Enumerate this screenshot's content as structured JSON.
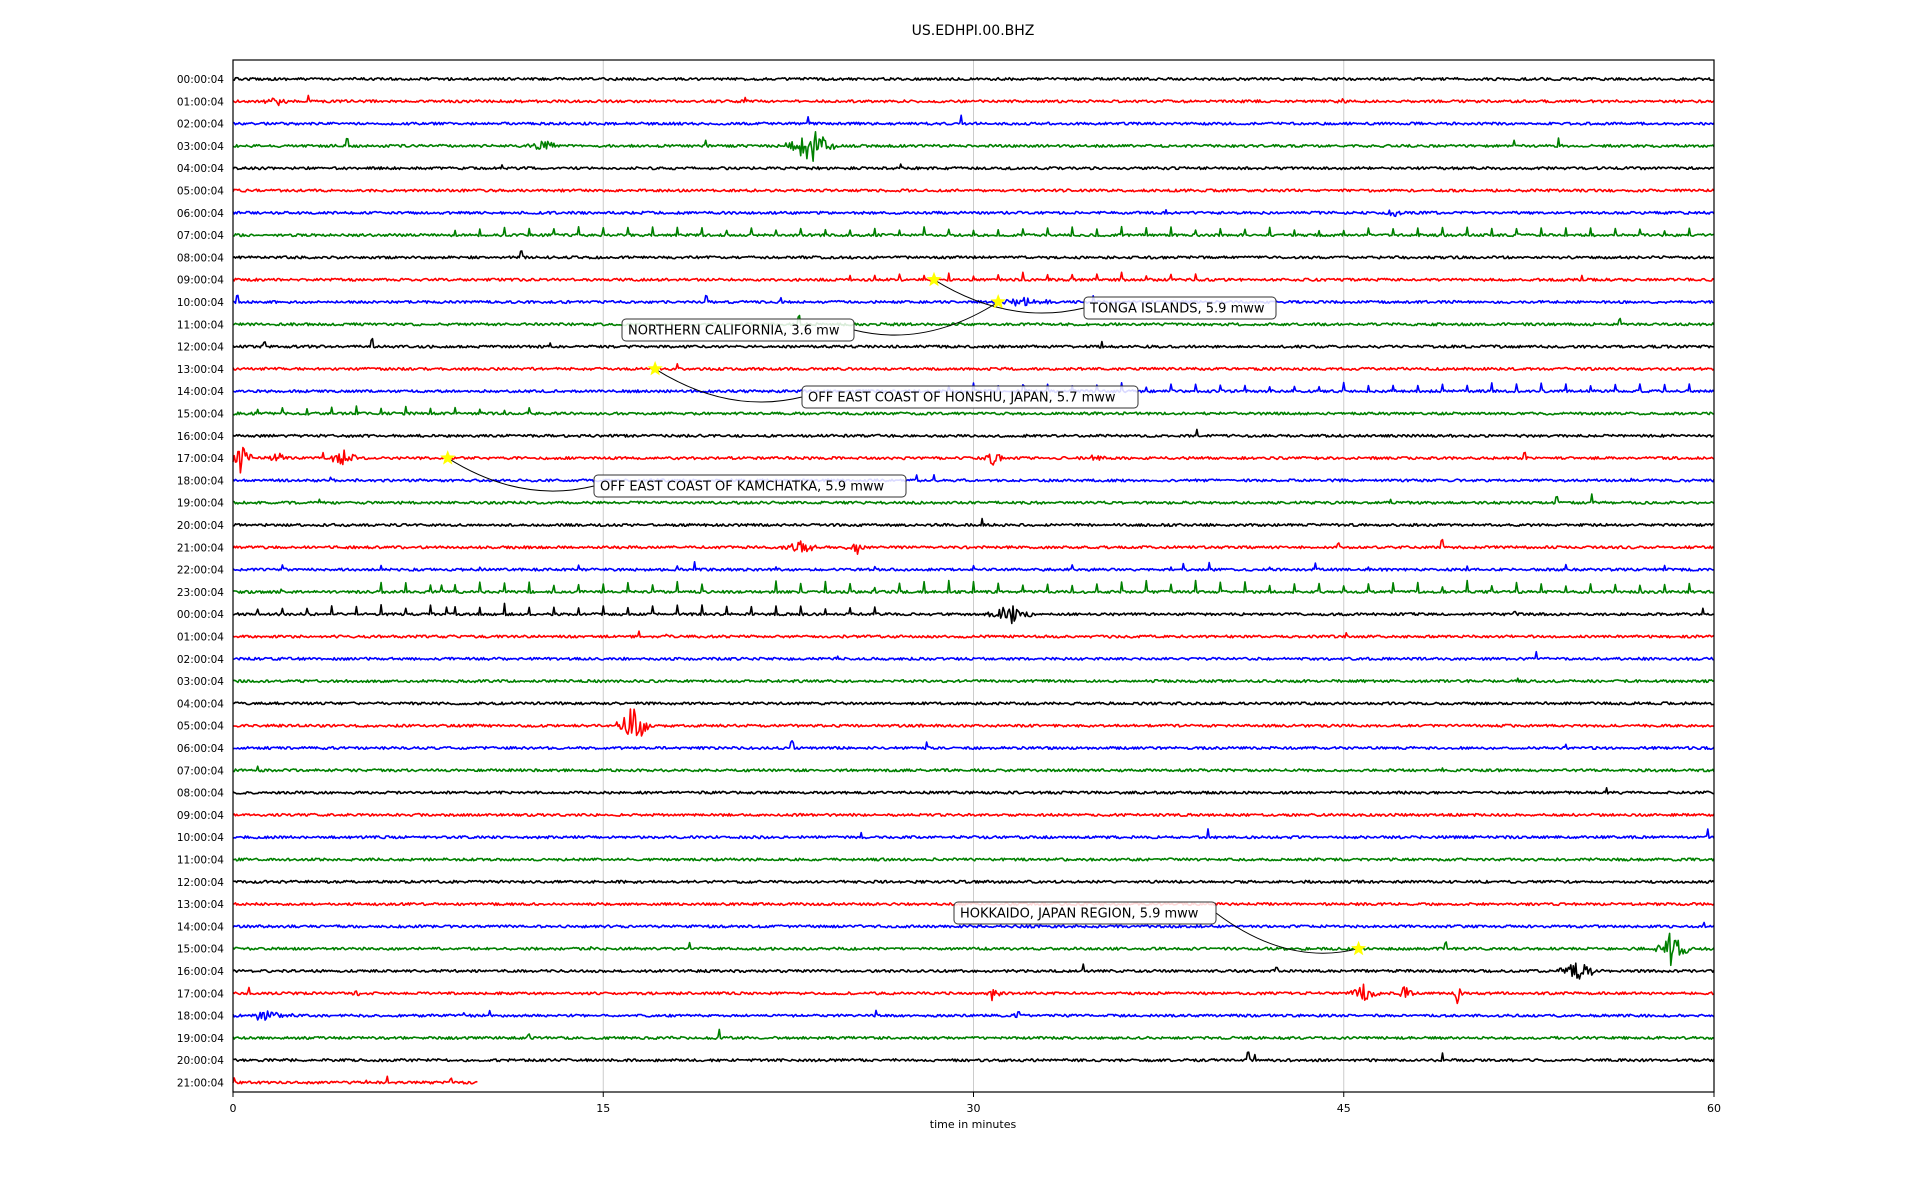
{
  "chart_data": {
    "type": "line",
    "subtype": "dayplot seismogram",
    "title": "US.EDHPI.00.BHZ",
    "xlabel": "time in minutes",
    "ylabel": "",
    "xlim": [
      0,
      60
    ],
    "x_ticks": [
      0,
      15,
      30,
      45,
      60
    ],
    "grid": "vertical",
    "trace_colors": [
      "#000000",
      "#ff0000",
      "#0000ff",
      "#008000"
    ],
    "row_labels": [
      "00:00:04",
      "01:00:04",
      "02:00:04",
      "03:00:04",
      "04:00:04",
      "05:00:04",
      "06:00:04",
      "07:00:04",
      "08:00:04",
      "09:00:04",
      "10:00:04",
      "11:00:04",
      "12:00:04",
      "13:00:04",
      "14:00:04",
      "15:00:04",
      "16:00:04",
      "17:00:04",
      "18:00:04",
      "19:00:04",
      "20:00:04",
      "21:00:04",
      "22:00:04",
      "23:00:04",
      "00:00:04",
      "01:00:04",
      "02:00:04",
      "03:00:04",
      "04:00:04",
      "05:00:04",
      "06:00:04",
      "07:00:04",
      "08:00:04",
      "09:00:04",
      "10:00:04",
      "11:00:04",
      "12:00:04",
      "13:00:04",
      "14:00:04",
      "15:00:04",
      "16:00:04",
      "17:00:04",
      "18:00:04",
      "19:00:04",
      "20:00:04",
      "21:00:04"
    ],
    "last_row_end_minute": 9.9,
    "event_marker_color": "#ffff00",
    "events": [
      {
        "label": "TONGA ISLANDS, 5.9 mww",
        "row": 9,
        "minute": 28.4
      },
      {
        "label": "NORTHERN CALIFORNIA, 3.6 mw",
        "row": 10,
        "minute": 31.0
      },
      {
        "label": "OFF EAST COAST OF HONSHU, JAPAN, 5.7 mww",
        "row": 13,
        "minute": 17.1
      },
      {
        "label": "OFF EAST COAST OF KAMCHATKA, 5.9 mww",
        "row": 17,
        "minute": 8.7
      },
      {
        "label": "HOKKAIDO, JAPAN REGION, 5.9 mww",
        "row": 39,
        "minute": 45.6
      }
    ],
    "bursts": [
      {
        "row": 1,
        "minute": 1.8,
        "width": 1.2,
        "amp": 6
      },
      {
        "row": 1,
        "minute": 44.9,
        "width": 0.4,
        "amp": 5
      },
      {
        "row": 3,
        "minute": 12.5,
        "width": 1.5,
        "amp": 7
      },
      {
        "row": 3,
        "minute": 23.4,
        "width": 2.0,
        "amp": 22
      },
      {
        "row": 6,
        "minute": 47.0,
        "width": 0.8,
        "amp": 5
      },
      {
        "row": 10,
        "minute": 32.0,
        "width": 3.0,
        "amp": 5
      },
      {
        "row": 17,
        "minute": 0.3,
        "width": 1.0,
        "amp": 18
      },
      {
        "row": 17,
        "minute": 1.8,
        "width": 1.0,
        "amp": 8
      },
      {
        "row": 17,
        "minute": 4.5,
        "width": 1.5,
        "amp": 9
      },
      {
        "row": 17,
        "minute": 30.8,
        "width": 1.2,
        "amp": 8
      },
      {
        "row": 17,
        "minute": 35.0,
        "width": 0.8,
        "amp": 5
      },
      {
        "row": 21,
        "minute": 23.0,
        "width": 1.5,
        "amp": 7
      },
      {
        "row": 21,
        "minute": 25.3,
        "width": 1.0,
        "amp": 8
      },
      {
        "row": 24,
        "minute": 31.5,
        "width": 1.8,
        "amp": 14
      },
      {
        "row": 29,
        "minute": 16.2,
        "width": 1.4,
        "amp": 26
      },
      {
        "row": 39,
        "minute": 58.3,
        "width": 1.4,
        "amp": 22
      },
      {
        "row": 40,
        "minute": 54.5,
        "width": 1.8,
        "amp": 12
      },
      {
        "row": 41,
        "minute": 5.0,
        "width": 0.8,
        "amp": 5
      },
      {
        "row": 41,
        "minute": 30.8,
        "width": 0.8,
        "amp": 8
      },
      {
        "row": 41,
        "minute": 45.8,
        "width": 1.4,
        "amp": 9
      },
      {
        "row": 41,
        "minute": 47.5,
        "width": 0.6,
        "amp": 9
      },
      {
        "row": 41,
        "minute": 49.6,
        "width": 0.4,
        "amp": 12
      },
      {
        "row": 42,
        "minute": 1.2,
        "width": 2.4,
        "amp": 6
      },
      {
        "row": 42,
        "minute": 31.8,
        "width": 0.6,
        "amp": 5
      }
    ],
    "spike_rows": [
      {
        "row": 7,
        "start": 9,
        "end": 59.5,
        "step": 1.0,
        "amp": 7
      },
      {
        "row": 9,
        "start": 25,
        "end": 39.5,
        "step": 1.0,
        "amp": 6
      },
      {
        "row": 14,
        "start": 29,
        "end": 59.5,
        "step": 1.0,
        "amp": 7
      },
      {
        "row": 15,
        "start": 1,
        "end": 12,
        "step": 1.0,
        "amp": 6
      },
      {
        "row": 22,
        "start": 2,
        "end": 59,
        "step": 4.0,
        "amp": 4
      },
      {
        "row": 23,
        "start": 6,
        "end": 19,
        "step": 1.0,
        "amp": 9
      },
      {
        "row": 23,
        "start": 22,
        "end": 59,
        "step": 1.0,
        "amp": 9
      },
      {
        "row": 24,
        "start": 1,
        "end": 26,
        "step": 1.0,
        "amp": 8
      }
    ]
  }
}
